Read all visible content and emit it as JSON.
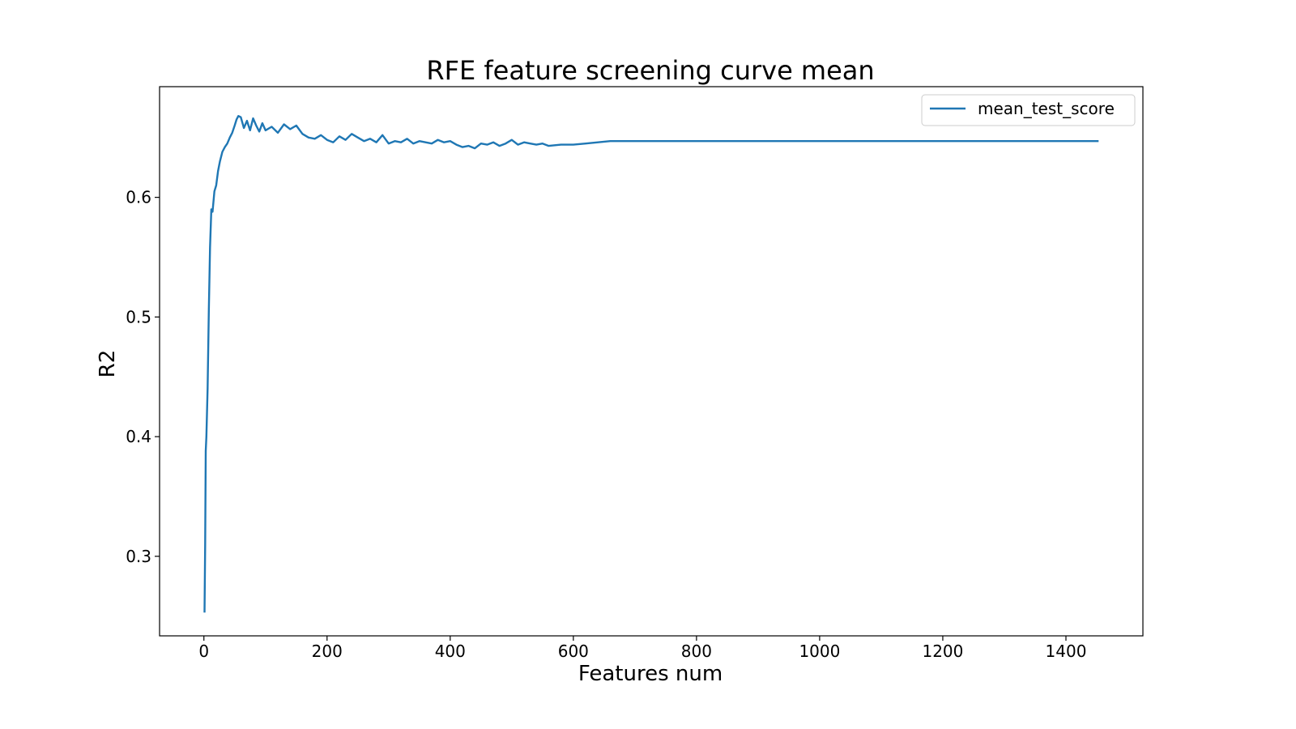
{
  "chart_data": {
    "type": "line",
    "title": "RFE feature screening curve mean",
    "xlabel": "Features num",
    "ylabel": "R2",
    "xlim": [
      -72,
      1525
    ],
    "ylim": [
      0.2335,
      0.6925
    ],
    "xticks": [
      0,
      200,
      400,
      600,
      800,
      1000,
      1200,
      1400
    ],
    "xtick_labels": [
      "0",
      "200",
      "400",
      "600",
      "800",
      "1000",
      "1200",
      "1400"
    ],
    "yticks": [
      0.3,
      0.4,
      0.5,
      0.6
    ],
    "ytick_labels": [
      "0.3",
      "0.4",
      "0.5",
      "0.6"
    ],
    "grid": false,
    "legend": {
      "position": "top-right",
      "entries": [
        "mean_test_score"
      ]
    },
    "series": [
      {
        "name": "mean_test_score",
        "color": "#1f77b4",
        "x": [
          1,
          2,
          3,
          4,
          6,
          8,
          10,
          12,
          14,
          17,
          20,
          23,
          26,
          30,
          34,
          38,
          42,
          46,
          50,
          53,
          56,
          60,
          65,
          70,
          75,
          80,
          85,
          90,
          95,
          100,
          110,
          120,
          130,
          140,
          150,
          160,
          170,
          180,
          190,
          200,
          210,
          220,
          230,
          240,
          250,
          260,
          270,
          280,
          290,
          300,
          310,
          320,
          330,
          340,
          350,
          360,
          370,
          380,
          390,
          400,
          410,
          420,
          430,
          440,
          450,
          460,
          470,
          480,
          490,
          500,
          510,
          520,
          530,
          540,
          550,
          560,
          580,
          600,
          620,
          640,
          660,
          700,
          800,
          900,
          1000,
          1100,
          1200,
          1300,
          1400,
          1453
        ],
        "values": [
          0.253,
          0.31,
          0.388,
          0.4,
          0.44,
          0.505,
          0.558,
          0.59,
          0.588,
          0.605,
          0.61,
          0.622,
          0.63,
          0.638,
          0.642,
          0.645,
          0.65,
          0.654,
          0.66,
          0.665,
          0.668,
          0.667,
          0.658,
          0.664,
          0.656,
          0.666,
          0.66,
          0.655,
          0.662,
          0.656,
          0.659,
          0.654,
          0.661,
          0.657,
          0.66,
          0.653,
          0.65,
          0.649,
          0.652,
          0.648,
          0.646,
          0.651,
          0.648,
          0.653,
          0.65,
          0.647,
          0.649,
          0.646,
          0.652,
          0.645,
          0.647,
          0.646,
          0.649,
          0.645,
          0.647,
          0.646,
          0.645,
          0.648,
          0.646,
          0.647,
          0.644,
          0.642,
          0.643,
          0.641,
          0.645,
          0.644,
          0.646,
          0.643,
          0.645,
          0.648,
          0.644,
          0.646,
          0.645,
          0.644,
          0.645,
          0.643,
          0.644,
          0.644,
          0.645,
          0.646,
          0.647,
          0.647,
          0.647,
          0.647,
          0.647,
          0.647,
          0.647,
          0.647,
          0.647,
          0.647
        ]
      }
    ]
  }
}
